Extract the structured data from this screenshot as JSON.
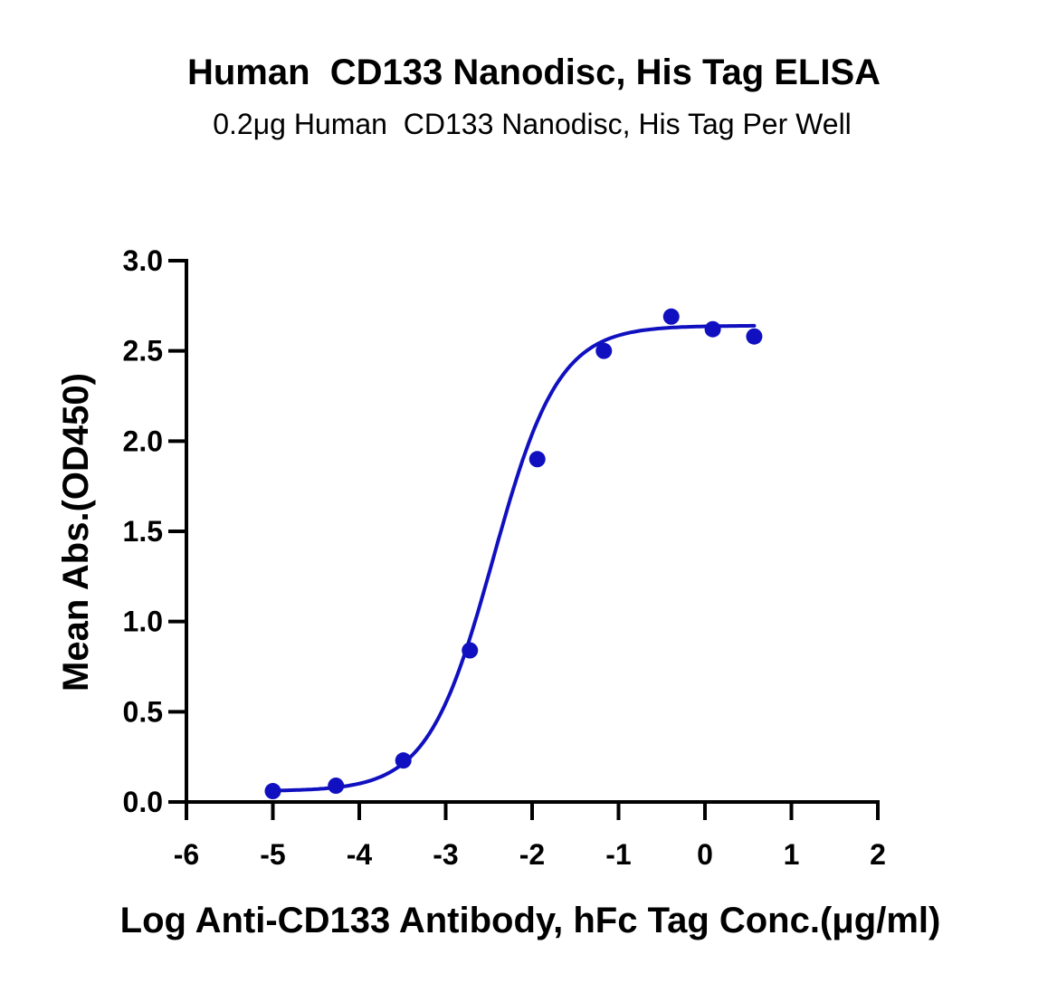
{
  "chart_data": {
    "type": "scatter",
    "title": "Human  CD133 Nanodisc, His Tag ELISA",
    "subtitle": "0.2μg Human  CD133 Nanodisc, His Tag Per Well",
    "xlabel": "Log Anti-CD133 Antibody, hFc Tag Conc.(μg/ml)",
    "ylabel": "Mean Abs.(OD450)",
    "xlim": [
      -6,
      2
    ],
    "ylim": [
      0,
      3.0
    ],
    "x_ticks": [
      -6,
      -5,
      -4,
      -3,
      -2,
      -1,
      0,
      1,
      2
    ],
    "x_tick_labels": [
      "-6",
      "-5",
      "-4",
      "-3",
      "-2",
      "-1",
      "0",
      "1",
      "2"
    ],
    "y_ticks": [
      0,
      0.5,
      1.0,
      1.5,
      2.0,
      2.5,
      3.0
    ],
    "y_tick_labels": [
      "0.0",
      "0.5",
      "1.0",
      "1.5",
      "2.0",
      "2.5",
      "3.0"
    ],
    "grid": false,
    "color": "#1010c0",
    "series": [
      {
        "x": [
          -5.0,
          -4.27,
          -3.49,
          -2.72,
          -1.94,
          -1.17,
          -0.39,
          0.09,
          0.57
        ],
        "y": [
          0.06,
          0.09,
          0.23,
          0.84,
          1.9,
          2.5,
          2.69,
          2.62,
          2.58
        ]
      }
    ],
    "fit_curve": {
      "model": "4PL",
      "x_range": [
        -5.0,
        0.57
      ],
      "bottom": 0.06,
      "top": 2.64,
      "log_ec50": -2.45,
      "hill": 1.15
    }
  }
}
